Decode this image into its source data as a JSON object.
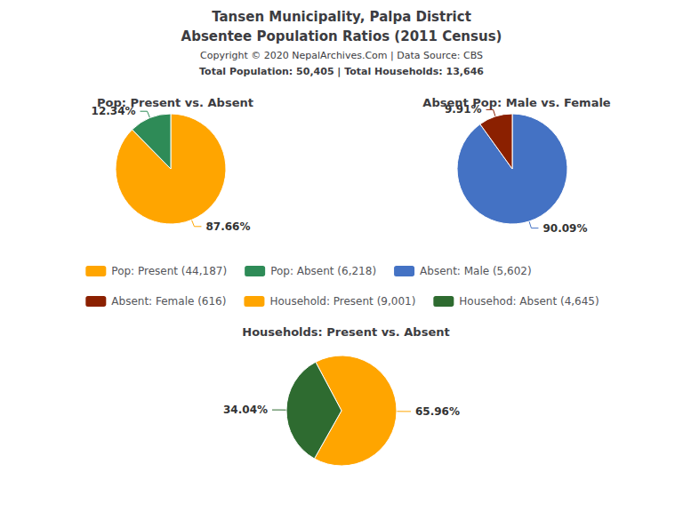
{
  "title": "Tansen Municipality, Palpa District",
  "subtitle": "Absentee Population Ratios (2011 Census)",
  "annotations": [
    "Copyright © 2020 NepalArchives.Com | Data Source: CBS",
    "Total Population: 50,405 | Total Households: 13,646"
  ],
  "legend": "center",
  "chart_data": [
    {
      "type": "pie",
      "title": "Pop: Present vs. Absent",
      "categories": [
        "Pop: Present (44,187)",
        "Pop: Absent (6,218)"
      ],
      "values": [
        87.66,
        12.34
      ],
      "value_labels": [
        "87.66%",
        "12.34%"
      ],
      "colors": [
        "#FFA500",
        "#2E8B57"
      ],
      "data_labels": true
    },
    {
      "type": "pie",
      "title": "Absent Pop: Male vs. Female",
      "categories": [
        "Absent: Male (5,602)",
        "Absent: Female (616)"
      ],
      "values": [
        90.09,
        9.91
      ],
      "value_labels": [
        "90.09%",
        "9.91%"
      ],
      "colors": [
        "#4472C4",
        "#8B2000"
      ],
      "data_labels": true
    },
    {
      "type": "pie",
      "title": "Households: Present vs. Absent",
      "categories": [
        "Household: Present (9,001)",
        "Househod: Absent (4,645)"
      ],
      "values": [
        65.96,
        34.04
      ],
      "value_labels": [
        "65.96%",
        "34.04%"
      ],
      "colors": [
        "#FFA500",
        "#2E6B30"
      ],
      "data_labels": true
    }
  ]
}
